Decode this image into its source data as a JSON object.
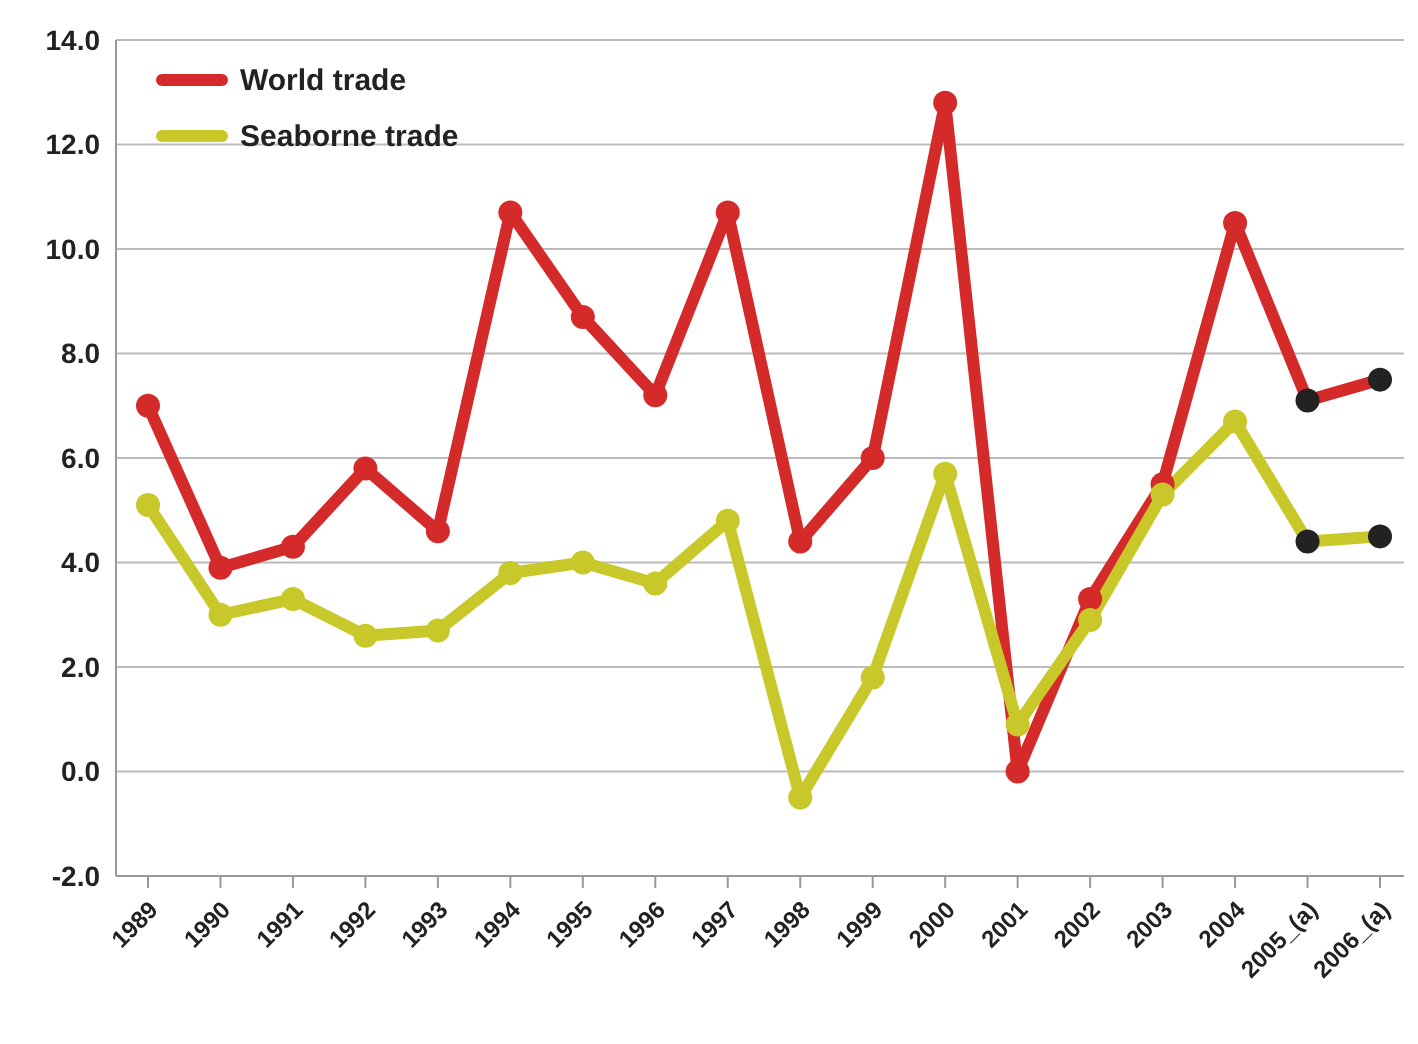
{
  "chart_data": {
    "type": "line",
    "categories": [
      "1989",
      "1990",
      "1991",
      "1992",
      "1993",
      "1994",
      "1995",
      "1996",
      "1997",
      "1998",
      "1999",
      "2000",
      "2001",
      "2002",
      "2003",
      "2004",
      "2005_(a)",
      "2006_(a)"
    ],
    "series": [
      {
        "name": "World trade",
        "color": "#d42a2a",
        "colors": [
          "#d42a2a",
          "#d42a2a",
          "#d42a2a",
          "#d42a2a",
          "#d42a2a",
          "#d42a2a",
          "#d42a2a",
          "#d42a2a",
          "#d42a2a",
          "#d42a2a",
          "#d42a2a",
          "#d42a2a",
          "#d42a2a",
          "#d42a2a",
          "#d42a2a",
          "#d42a2a",
          "#222222",
          "#222222"
        ],
        "values": [
          7.0,
          3.9,
          4.3,
          5.8,
          4.6,
          10.7,
          8.7,
          7.2,
          10.7,
          4.4,
          6.0,
          12.8,
          0.0,
          3.3,
          5.5,
          10.5,
          7.1,
          7.5
        ]
      },
      {
        "name": "Seaborne trade",
        "color": "#c8c82a",
        "colors": [
          "#c8c82a",
          "#c8c82a",
          "#c8c82a",
          "#c8c82a",
          "#c8c82a",
          "#c8c82a",
          "#c8c82a",
          "#c8c82a",
          "#c8c82a",
          "#c8c82a",
          "#c8c82a",
          "#c8c82a",
          "#c8c82a",
          "#c8c82a",
          "#c8c82a",
          "#c8c82a",
          "#222222",
          "#222222"
        ],
        "values": [
          5.1,
          3.0,
          3.3,
          2.6,
          2.7,
          3.8,
          4.0,
          3.6,
          4.8,
          -0.5,
          1.8,
          5.7,
          0.9,
          2.9,
          5.3,
          6.7,
          4.4,
          4.5
        ]
      }
    ],
    "ylim": [
      -2,
      14
    ],
    "yticks": [
      {
        "value": -2,
        "label": "-2.0"
      },
      {
        "value": 0,
        "label": "0.0"
      },
      {
        "value": 2,
        "label": "2.0"
      },
      {
        "value": 4,
        "label": "4.0"
      },
      {
        "value": 6,
        "label": "6.0"
      },
      {
        "value": 8,
        "label": "8.0"
      },
      {
        "value": 10,
        "label": "10.0"
      },
      {
        "value": 12,
        "label": "12.0"
      },
      {
        "value": 14,
        "label": "14.0"
      }
    ],
    "grid": "y",
    "legend": "top left",
    "marker": "circle",
    "line_style": "solid"
  }
}
